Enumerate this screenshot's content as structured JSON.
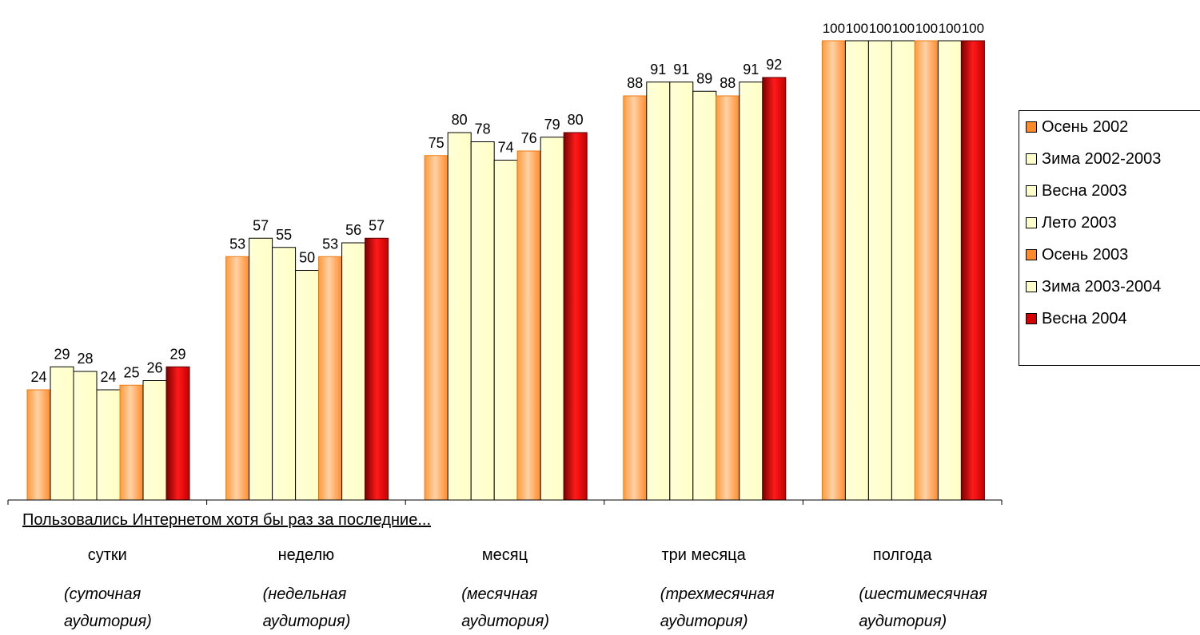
{
  "chart_data": {
    "type": "bar",
    "axis_note": "Пользовались Интернетом хотя бы раз за последние...",
    "categories": [
      "сутки",
      "неделю",
      "месяц",
      "три месяца",
      "полгода"
    ],
    "category_subtitles": [
      [
        "(суточная",
        "аудитория)"
      ],
      [
        "(недельная",
        "аудитория)"
      ],
      [
        "(месячная",
        "аудитория)"
      ],
      [
        "(трехмесячная",
        "аудитория)"
      ],
      [
        "(шестимесячная",
        "аудитория)"
      ]
    ],
    "series": [
      {
        "name": "Осень 2002",
        "values": [
          24,
          53,
          75,
          88,
          100
        ],
        "color": "#ff8a2a"
      },
      {
        "name": "Зима 2002-2003",
        "values": [
          29,
          57,
          80,
          91,
          100
        ],
        "color": "#ffffcc"
      },
      {
        "name": "Весна 2003",
        "values": [
          28,
          55,
          78,
          91,
          100
        ],
        "color": "#ffffcc"
      },
      {
        "name": "Лето 2003",
        "values": [
          24,
          50,
          74,
          89,
          100
        ],
        "color": "#ffffcc"
      },
      {
        "name": "Осень 2003",
        "values": [
          25,
          53,
          76,
          88,
          100
        ],
        "color": "#ff8a2a"
      },
      {
        "name": "Зима 2003-2004",
        "values": [
          26,
          56,
          79,
          91,
          100
        ],
        "color": "#ffffcc"
      },
      {
        "name": "Весна 2004",
        "values": [
          29,
          57,
          80,
          92,
          100
        ],
        "color": "#d40000"
      }
    ],
    "ylim": [
      0,
      100
    ],
    "grid": false,
    "legend_position": "right"
  }
}
